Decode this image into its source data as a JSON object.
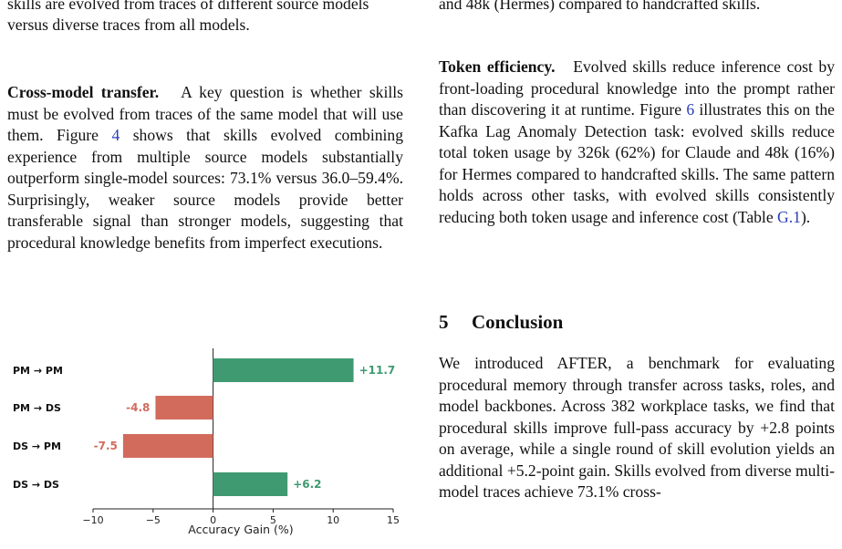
{
  "left_column": {
    "top_fragment_line1": "skills are evolved from traces of different source models",
    "top_fragment_line2": "versus diverse traces from all models.",
    "cross_model": {
      "heading": "Cross-model transfer.",
      "body_before_ref": "A key question is whether skills must be evolved from traces of the same model that will use them. Figure",
      "ref": "4",
      "body_after_ref": "shows that skills evolved combining experience from multiple source models substantially outperform single-model sources: 73.1% versus 36.0–59.4%. Surprisingly, weaker source models provide better transferable signal than stronger models, suggesting that procedural knowledge benefits from imperfect executions."
    }
  },
  "right_column": {
    "top_fragment": "and 48k (Hermes) compared to handcrafted skills.",
    "token_efficiency": {
      "heading": "Token efficiency.",
      "body_part1": "Evolved skills reduce inference cost by front-loading procedural knowledge into the prompt rather than discovering it at runtime. Figure",
      "ref_figure": "6",
      "body_part2": "illustrates this on the Kafka Lag Anomaly Detection task: evolved skills reduce total token usage by 326k (62%) for Claude and 48k (16%) for Hermes compared to handcrafted skills. The same pattern holds across other tasks, with evolved skills consistently reducing both token usage and inference cost (Table",
      "ref_table": "G.1",
      "body_part3": ")."
    },
    "conclusion": {
      "number": "5",
      "title": "Conclusion",
      "body": "We introduced AFTER, a benchmark for evaluating procedural memory through transfer across tasks, roles, and model backbones. Across 382 workplace tasks, we find that procedural skills improve full-pass accuracy by +2.8 points on average, while a single round of skill evolution yields an additional +5.2-point gain. Skills evolved from diverse multi-model traces achieve 73.1% cross-"
    }
  },
  "chart_data": {
    "type": "bar",
    "orientation": "horizontal",
    "categories": [
      "PM → PM",
      "PM → DS",
      "DS → PM",
      "DS → DS"
    ],
    "values": [
      11.7,
      -4.8,
      -7.5,
      6.2
    ],
    "value_labels": [
      "+11.7",
      "-4.8",
      "-7.5",
      "+6.2"
    ],
    "xlabel": "Accuracy Gain (%)",
    "xlim": [
      -10,
      15
    ],
    "xticks": [
      -10,
      -5,
      0,
      5,
      10,
      15
    ],
    "xtick_labels": [
      "−10",
      "−5",
      "0",
      "5",
      "10",
      "15"
    ],
    "grid": false,
    "colors": {
      "positive": "#3f9a72",
      "negative": "#d26b5c"
    }
  }
}
